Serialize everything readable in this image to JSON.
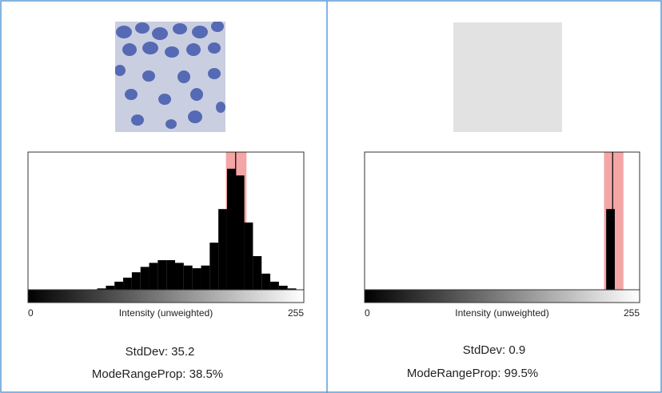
{
  "panels": [
    {
      "stddev": "StdDev: 35.2",
      "mode_range_prop": "ModeRangeProp: 38.5%",
      "histogram": {
        "type": "histogram",
        "xlabel": "Intensity (unweighted)",
        "xlim": [
          0,
          255
        ],
        "xticks": [
          0,
          255
        ],
        "ylim": [
          0,
          100
        ],
        "bins": [
          0,
          8,
          16,
          24,
          32,
          40,
          48,
          56,
          64,
          72,
          80,
          88,
          96,
          104,
          112,
          120,
          128,
          136,
          144,
          152,
          160,
          168,
          176,
          184,
          192,
          200,
          208,
          216,
          224,
          232,
          240,
          248,
          255
        ],
        "counts": [
          0,
          0,
          0,
          0,
          0,
          0,
          0,
          0,
          1,
          3,
          6,
          9,
          13,
          17,
          20,
          22,
          22,
          20,
          18,
          16,
          18,
          35,
          60,
          90,
          85,
          50,
          25,
          12,
          6,
          3,
          1,
          0
        ],
        "mode": 192,
        "mode_range": [
          183,
          202
        ],
        "color": "#000000",
        "band_color": "#f08080"
      }
    },
    {
      "stddev": "StdDev: 0.9",
      "mode_range_prop": "ModeRangeProp: 99.5%",
      "histogram": {
        "type": "histogram",
        "xlabel": "Intensity (unweighted)",
        "xlim": [
          0,
          255
        ],
        "xticks": [
          0,
          255
        ],
        "ylim": [
          0,
          100
        ],
        "bins": [
          0,
          8,
          16,
          24,
          32,
          40,
          48,
          56,
          64,
          72,
          80,
          88,
          96,
          104,
          112,
          120,
          128,
          136,
          144,
          152,
          160,
          168,
          176,
          184,
          192,
          200,
          208,
          216,
          224,
          232,
          240,
          248,
          255
        ],
        "counts": [
          0,
          0,
          0,
          0,
          0,
          0,
          0,
          0,
          0,
          0,
          0,
          0,
          0,
          0,
          0,
          0,
          0,
          0,
          0,
          0,
          0,
          0,
          0,
          0,
          0,
          0,
          0,
          0,
          60,
          0,
          0,
          0
        ],
        "mode": 230,
        "mode_range": [
          222,
          240
        ],
        "color": "#000000",
        "band_color": "#f08080"
      }
    }
  ]
}
